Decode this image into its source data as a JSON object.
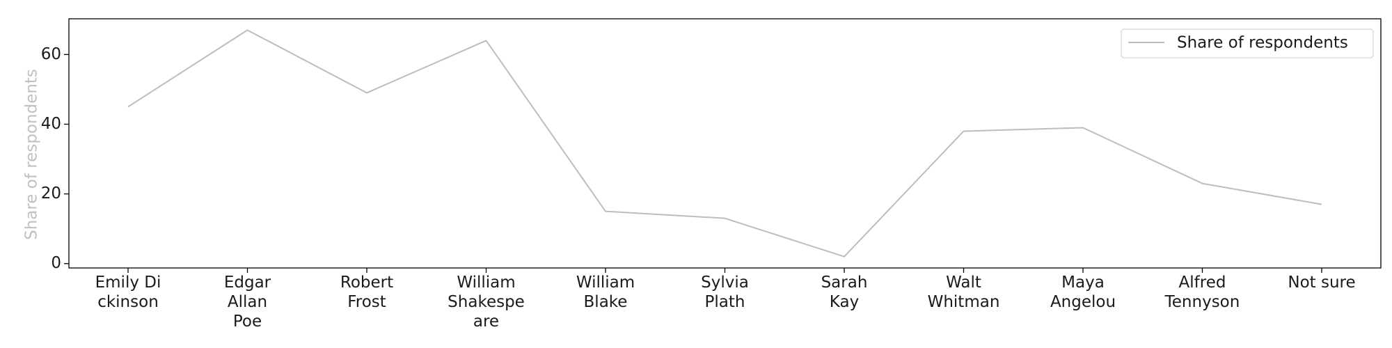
{
  "chart_data": {
    "type": "line",
    "categories": [
      [
        "Emily Di",
        "ckinson"
      ],
      [
        "Edgar",
        "Allan",
        "Poe"
      ],
      [
        "Robert",
        "Frost"
      ],
      [
        "William",
        "Shakespe",
        "are"
      ],
      [
        "William",
        "Blake"
      ],
      [
        "Sylvia",
        "Plath"
      ],
      [
        "Sarah",
        "Kay"
      ],
      [
        "Walt",
        "Whitman"
      ],
      [
        "Maya",
        "Angelou"
      ],
      [
        "Alfred",
        "Tennyson"
      ],
      [
        "Not sure"
      ]
    ],
    "series": [
      {
        "name": "Share of respondents",
        "values": [
          45,
          67,
          49,
          64,
          15,
          13,
          2,
          38,
          39,
          23,
          17
        ],
        "color": "#bdbdbd"
      }
    ],
    "title": "",
    "xlabel": "",
    "ylabel": "Share of respondents",
    "ylabel_color": "#c0c0c0",
    "yticks": [
      0,
      20,
      40,
      60
    ],
    "ylim": [
      -1.25,
      70.25
    ],
    "grid": false,
    "legend": "top-right"
  }
}
